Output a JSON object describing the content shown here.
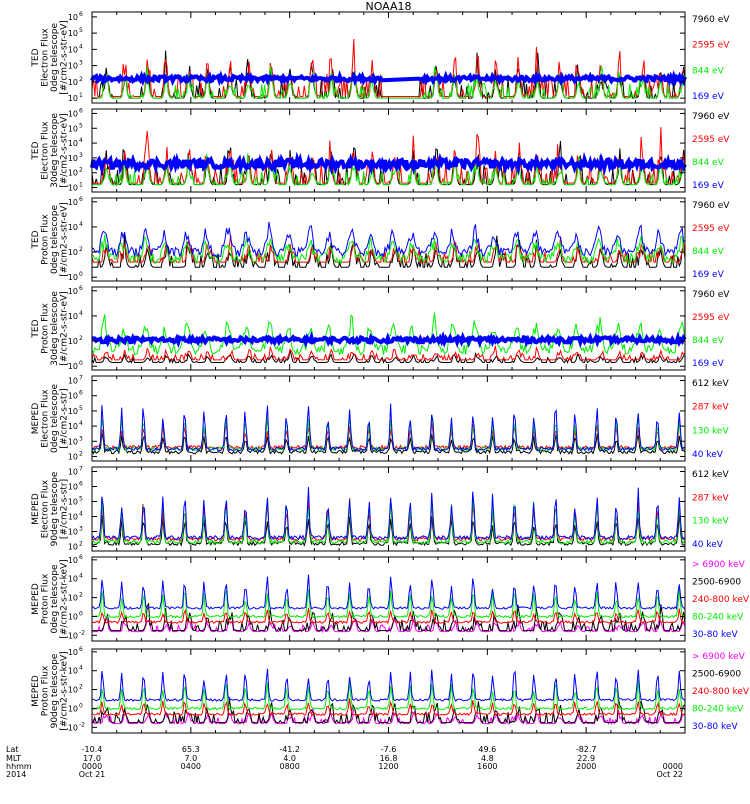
{
  "title": "NOAA18",
  "colors": {
    "black": "#000000",
    "red": "#ff0000",
    "green": "#00ee00",
    "blue": "#0000ff",
    "magenta": "#ff00ff"
  },
  "chart_data": [
    {
      "type": "line",
      "label_lines": [
        "TED",
        "Electron Flux",
        "0deg telescope",
        "[#/cm2-s-str-eV]"
      ],
      "yticks": [
        [
          "10",
          "1"
        ],
        [
          "10",
          "2"
        ],
        [
          "10",
          "3"
        ],
        [
          "10",
          "4"
        ],
        [
          "10",
          "5"
        ],
        [
          "10",
          "6"
        ]
      ],
      "series": [
        {
          "name": "7960 eV",
          "color": "black",
          "base": 1,
          "var": 1.6,
          "mode": "spike"
        },
        {
          "name": "2595 eV",
          "color": "red",
          "base": 1.1,
          "var": 1.8,
          "mode": "spike"
        },
        {
          "name": "844 eV",
          "color": "green",
          "base": 1.0,
          "var": 1.2,
          "mode": "spike"
        },
        {
          "name": "169 eV",
          "color": "blue",
          "base": 2.2,
          "var": 0.15,
          "mode": "band"
        }
      ],
      "gap": [
        0.49,
        0.55
      ]
    },
    {
      "type": "line",
      "label_lines": [
        "TED",
        "Electron Flux",
        "30deg telescope",
        "[#/cm2-s-str-eV]"
      ],
      "yticks": [
        [
          "10",
          "1"
        ],
        [
          "10",
          "2"
        ],
        [
          "10",
          "3"
        ],
        [
          "10",
          "4"
        ],
        [
          "10",
          "5"
        ],
        [
          "10",
          "6"
        ]
      ],
      "series": [
        {
          "name": "7960 eV",
          "color": "black",
          "base": 1.2,
          "var": 1.8,
          "mode": "spike"
        },
        {
          "name": "2595 eV",
          "color": "red",
          "base": 1.3,
          "var": 1.8,
          "mode": "spike"
        },
        {
          "name": "844 eV",
          "color": "green",
          "base": 1.2,
          "var": 1.2,
          "mode": "spike"
        },
        {
          "name": "169 eV",
          "color": "blue",
          "base": 2.6,
          "var": 0.3,
          "mode": "band"
        }
      ]
    },
    {
      "type": "line",
      "label_lines": [
        "TED",
        "Proton Flux",
        "0deg telescope",
        "[#/cm2-s-str-eV]"
      ],
      "yticks": [
        [
          "10",
          "0"
        ],
        [
          "10",
          "2"
        ],
        [
          "10",
          "4"
        ],
        [
          "10",
          "6"
        ]
      ],
      "series": [
        {
          "name": "7960 eV",
          "color": "black",
          "base": 0.8,
          "var": 1.4,
          "mode": "spike"
        },
        {
          "name": "2595 eV",
          "color": "red",
          "base": 1.2,
          "var": 1.2,
          "mode": "spike"
        },
        {
          "name": "844 eV",
          "color": "green",
          "base": 1.5,
          "var": 1.4,
          "mode": "wave"
        },
        {
          "name": "169 eV",
          "color": "blue",
          "base": 2.0,
          "var": 1.8,
          "mode": "wave"
        }
      ]
    },
    {
      "type": "line",
      "label_lines": [
        "TED",
        "Proton Flux",
        "30deg telescope",
        "[#/cm2-s-str-eV]"
      ],
      "yticks": [
        [
          "10",
          "0"
        ],
        [
          "10",
          "2"
        ],
        [
          "10",
          "4"
        ],
        [
          "10",
          "6"
        ]
      ],
      "series": [
        {
          "name": "7960 eV",
          "color": "black",
          "base": 0.3,
          "var": 0.5,
          "mode": "spike"
        },
        {
          "name": "2595 eV",
          "color": "red",
          "base": 0.5,
          "var": 0.6,
          "mode": "spike"
        },
        {
          "name": "844 eV",
          "color": "green",
          "base": 1.3,
          "var": 2.2,
          "mode": "wave"
        },
        {
          "name": "169 eV",
          "color": "blue",
          "base": 2.1,
          "var": 0.2,
          "mode": "band"
        }
      ]
    },
    {
      "type": "line",
      "label_lines": [
        "MEPED",
        "Electron Flux",
        "0deg telescope",
        "[#/cm2-s-str]"
      ],
      "yticks": [
        [
          "10",
          "2"
        ],
        [
          "10",
          "3"
        ],
        [
          "10",
          "4"
        ],
        [
          "10",
          "5"
        ],
        [
          "10",
          "6"
        ],
        [
          "10",
          "7"
        ]
      ],
      "series": [
        {
          "name": "612 keV",
          "color": "black",
          "base": 2.3,
          "var": 1.2,
          "mode": "peak"
        },
        {
          "name": "287 keV",
          "color": "red",
          "base": 2.6,
          "var": 1.5,
          "mode": "peak"
        },
        {
          "name": "130 keV",
          "color": "green",
          "base": 2.5,
          "var": 2.2,
          "mode": "peak"
        },
        {
          "name": "40 keV",
          "color": "blue",
          "base": 2.5,
          "var": 2.9,
          "mode": "peak"
        }
      ]
    },
    {
      "type": "line",
      "label_lines": [
        "MEPED",
        "Electron Flux",
        "90deg telescope",
        "[#/cm2-s-str]"
      ],
      "yticks": [
        [
          "10",
          "2"
        ],
        [
          "10",
          "3"
        ],
        [
          "10",
          "4"
        ],
        [
          "10",
          "5"
        ],
        [
          "10",
          "6"
        ],
        [
          "10",
          "7"
        ]
      ],
      "series": [
        {
          "name": "612 keV",
          "color": "black",
          "base": 2.2,
          "var": 1.8,
          "mode": "peak"
        },
        {
          "name": "287 keV",
          "color": "red",
          "base": 2.5,
          "var": 2.4,
          "mode": "peak"
        },
        {
          "name": "130 keV",
          "color": "green",
          "base": 2.3,
          "var": 2.8,
          "mode": "peak"
        },
        {
          "name": "40 keV",
          "color": "blue",
          "base": 2.6,
          "var": 3.0,
          "mode": "peak"
        }
      ]
    },
    {
      "type": "line",
      "label_lines": [
        "MEPED",
        "Proton Flux",
        "0deg telescope",
        "[#/cm2-s-str-keV]"
      ],
      "yticks": [
        [
          "10",
          "-2"
        ],
        [
          "10",
          "0"
        ],
        [
          "10",
          "2"
        ],
        [
          "10",
          "4"
        ],
        [
          "10",
          "6"
        ]
      ],
      "series": [
        {
          "name": "> 6900 keV",
          "color": "magenta",
          "base": -1.6,
          "var": 0.9,
          "mode": "spike"
        },
        {
          "name": "2500-6900",
          "color": "black",
          "base": -1.5,
          "var": 1.5,
          "mode": "spike"
        },
        {
          "name": "240-800 keV",
          "color": "red",
          "base": -0.6,
          "var": 1.4,
          "mode": "peak"
        },
        {
          "name": "80-240 keV",
          "color": "green",
          "base": 0.0,
          "var": 2.8,
          "mode": "peak"
        },
        {
          "name": "30-80 keV",
          "color": "blue",
          "base": 0.9,
          "var": 3.2,
          "mode": "peak"
        }
      ]
    },
    {
      "type": "line",
      "label_lines": [
        "MEPED",
        "Proton Flux",
        "90deg telescope",
        "[#/cm2-s-str-keV]"
      ],
      "yticks": [
        [
          "10",
          "-2"
        ],
        [
          "10",
          "0"
        ],
        [
          "10",
          "2"
        ],
        [
          "10",
          "4"
        ],
        [
          "10",
          "6"
        ]
      ],
      "series": [
        {
          "name": "> 6900 keV",
          "color": "magenta",
          "base": -1.6,
          "var": 0.9,
          "mode": "spike"
        },
        {
          "name": "2500-6900",
          "color": "black",
          "base": -1.5,
          "var": 1.5,
          "mode": "spike"
        },
        {
          "name": "240-800 keV",
          "color": "red",
          "base": -0.6,
          "var": 1.4,
          "mode": "peak"
        },
        {
          "name": "80-240 keV",
          "color": "green",
          "base": 0.0,
          "var": 2.8,
          "mode": "peak"
        },
        {
          "name": "30-80 keV",
          "color": "blue",
          "base": 0.9,
          "var": 3.2,
          "mode": "peak"
        }
      ]
    }
  ],
  "xaxis": {
    "row_labels": [
      "Lat",
      "MLT",
      "hhmm",
      "2014"
    ],
    "ticks": [
      {
        "lat": "-10.4",
        "mlt": "17.0",
        "hhmm": "0000",
        "date": "Oct 21"
      },
      {
        "lat": "65.3",
        "mlt": "7.0",
        "hhmm": "0400",
        "date": ""
      },
      {
        "lat": "-41.2",
        "mlt": "4.0",
        "hhmm": "0800",
        "date": ""
      },
      {
        "lat": "-7.6",
        "mlt": "16.8",
        "hhmm": "1200",
        "date": ""
      },
      {
        "lat": "49.6",
        "mlt": "4.8",
        "hhmm": "1600",
        "date": ""
      },
      {
        "lat": "-82.7",
        "mlt": "22.9",
        "hhmm": "2000",
        "date": ""
      },
      {
        "lat": "",
        "mlt": "",
        "hhmm": "0000",
        "date": "Oct 22"
      }
    ]
  }
}
